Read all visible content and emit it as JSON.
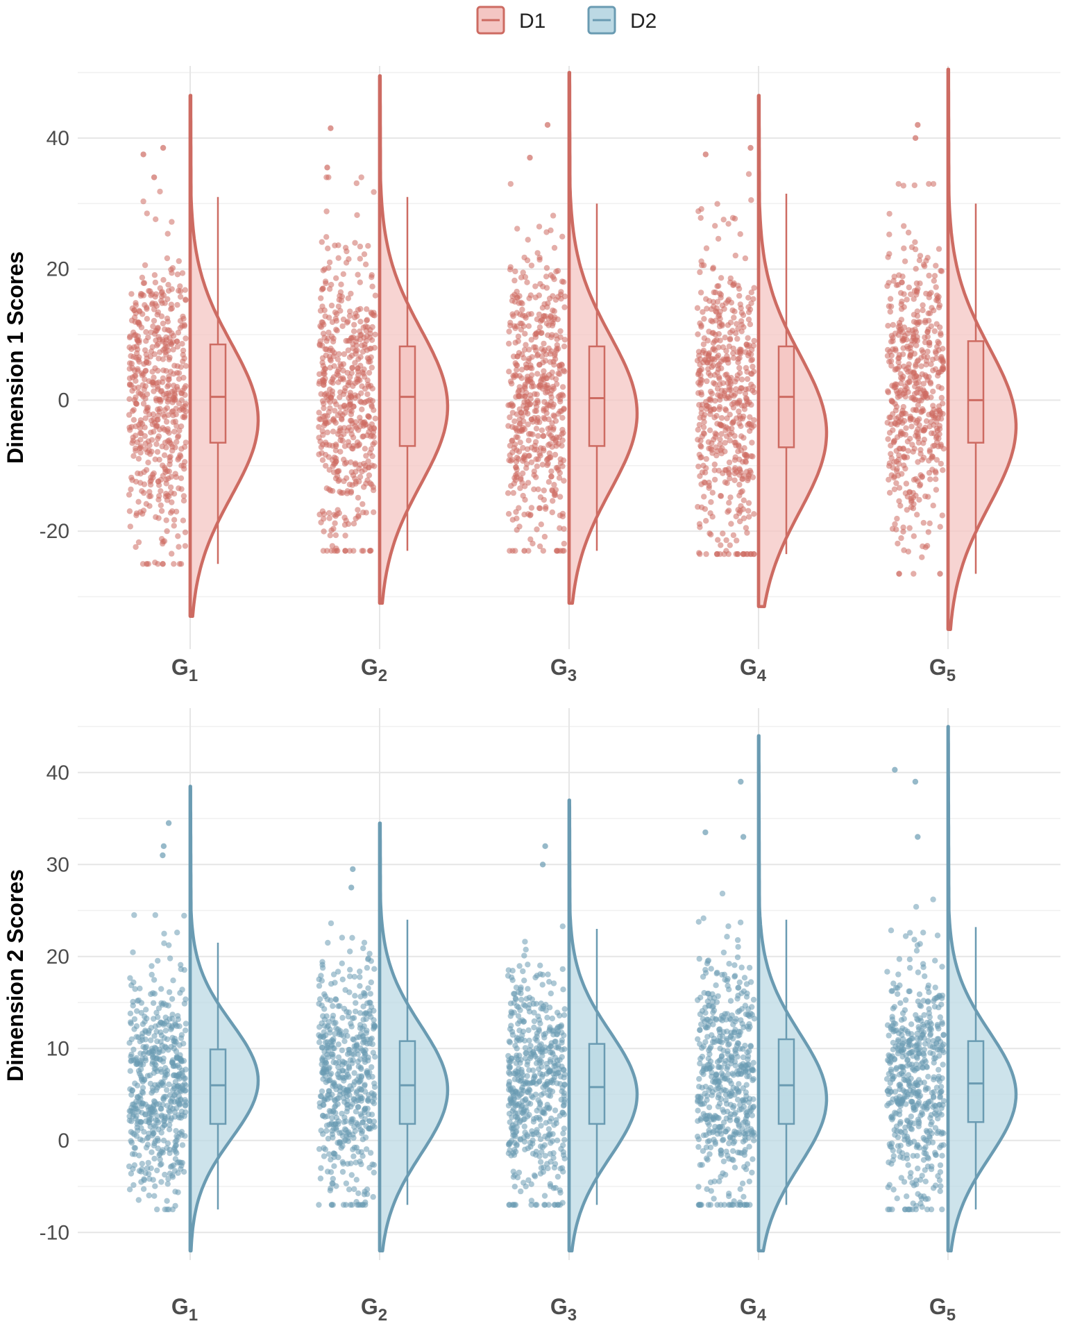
{
  "legend": [
    {
      "key": "D1",
      "label": "D1",
      "color": "#cd6b62",
      "fill": "#f4c6c3"
    },
    {
      "key": "D2",
      "label": "D2",
      "color": "#6a9bb2",
      "fill": "#bcd9e4"
    }
  ],
  "chart_data": [
    {
      "type": "raincloud",
      "series": "D1",
      "ylabel": "Dimension 1 Scores",
      "ylim": [
        -38,
        51
      ],
      "yticks": [
        -20,
        0,
        20,
        40
      ],
      "categories": [
        {
          "name": "G",
          "sub": "1",
          "min": -25,
          "q1": -6.5,
          "median": 0.5,
          "q3": 8.5,
          "max": 31,
          "kde_min": -33,
          "kde_max": 46.5,
          "mode": -3,
          "outliers": [
            -25,
            37.5,
            38.5,
            34
          ]
        },
        {
          "name": "G",
          "sub": "2",
          "min": -23,
          "q1": -7,
          "median": 0.5,
          "q3": 8.2,
          "max": 31,
          "kde_min": -31,
          "kde_max": 49.5,
          "mode": -1,
          "outliers": [
            -23,
            41.5,
            35.5
          ]
        },
        {
          "name": "G",
          "sub": "3",
          "min": -23,
          "q1": -7,
          "median": 0.3,
          "q3": 8.2,
          "max": 30,
          "kde_min": -31,
          "kde_max": 50,
          "mode": -2,
          "outliers": [
            -23,
            42,
            37
          ]
        },
        {
          "name": "G",
          "sub": "4",
          "min": -23.5,
          "q1": -7.2,
          "median": 0.5,
          "q3": 8.2,
          "max": 31.5,
          "kde_min": -31.5,
          "kde_max": 46.5,
          "mode": -5,
          "outliers": [
            -23.5,
            38.5,
            37.5
          ]
        },
        {
          "name": "G",
          "sub": "5",
          "min": -26.5,
          "q1": -6.5,
          "median": 0,
          "q3": 9,
          "max": 30,
          "kde_min": -35,
          "kde_max": 50.5,
          "mode": -4,
          "outliers": [
            -26.5,
            40,
            42
          ]
        }
      ]
    },
    {
      "type": "raincloud",
      "series": "D2",
      "ylabel": "Dimension 2 Scores",
      "ylim": [
        -13,
        47
      ],
      "yticks": [
        -10,
        0,
        10,
        20,
        30,
        40
      ],
      "categories": [
        {
          "name": "G",
          "sub": "1",
          "min": -7.5,
          "q1": 1.8,
          "median": 6,
          "q3": 9.9,
          "max": 21.5,
          "kde_min": -12,
          "kde_max": 38.5,
          "mode": 6.5,
          "outliers": [
            32,
            34.5,
            31
          ]
        },
        {
          "name": "G",
          "sub": "2",
          "min": -7,
          "q1": 1.8,
          "median": 6,
          "q3": 10.8,
          "max": 24,
          "kde_min": -12,
          "kde_max": 34.5,
          "mode": 5.5,
          "outliers": [
            29.5,
            27.5
          ]
        },
        {
          "name": "G",
          "sub": "3",
          "min": -7,
          "q1": 1.8,
          "median": 5.8,
          "q3": 10.5,
          "max": 23,
          "kde_min": -12,
          "kde_max": 37,
          "mode": 5,
          "outliers": [
            30,
            32
          ]
        },
        {
          "name": "G",
          "sub": "4",
          "min": -7,
          "q1": 1.8,
          "median": 6,
          "q3": 11,
          "max": 24,
          "kde_min": -12,
          "kde_max": 44,
          "mode": 4.5,
          "outliers": [
            39,
            33.5,
            33
          ]
        },
        {
          "name": "G",
          "sub": "5",
          "min": -7.5,
          "q1": 2,
          "median": 6.2,
          "q3": 10.8,
          "max": 23.2,
          "kde_min": -12,
          "kde_max": 45,
          "mode": 5,
          "outliers": [
            39,
            40.3,
            33
          ]
        }
      ]
    }
  ]
}
